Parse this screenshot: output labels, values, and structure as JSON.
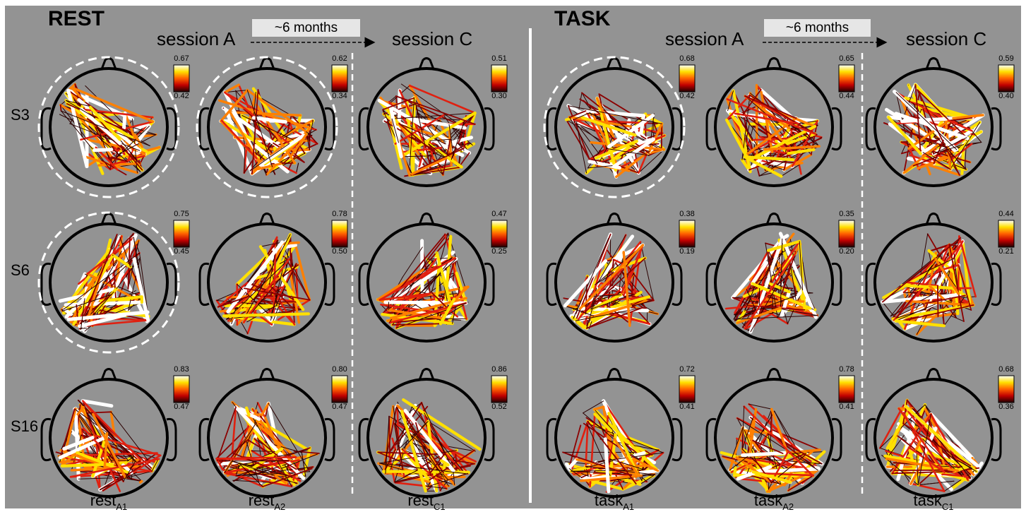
{
  "sections": {
    "rest": {
      "title": "REST",
      "session_a": "session A",
      "session_c": "session C",
      "interval": "~6 months"
    },
    "task": {
      "title": "TASK",
      "session_a": "session A",
      "session_c": "session C",
      "interval": "~6 months"
    }
  },
  "subjects": [
    "S3",
    "S6",
    "S16"
  ],
  "columns": [
    {
      "base": "rest",
      "sub": "A1"
    },
    {
      "base": "rest",
      "sub": "A2"
    },
    {
      "base": "rest",
      "sub": "C1"
    },
    {
      "base": "task",
      "sub": "A1"
    },
    {
      "base": "task",
      "sub": "A2"
    },
    {
      "base": "task",
      "sub": "C1"
    }
  ],
  "colorbars": [
    [
      {
        "max": "0.67",
        "min": "0.42"
      },
      {
        "max": "0.62",
        "min": "0.34"
      },
      {
        "max": "0.51",
        "min": "0.30"
      },
      {
        "max": "0.68",
        "min": "0.42"
      },
      {
        "max": "0.65",
        "min": "0.44"
      },
      {
        "max": "0.59",
        "min": "0.40"
      }
    ],
    [
      {
        "max": "0.75",
        "min": "0.45"
      },
      {
        "max": "0.78",
        "min": "0.50"
      },
      {
        "max": "0.47",
        "min": "0.25"
      },
      {
        "max": "0.38",
        "min": "0.19"
      },
      {
        "max": "0.35",
        "min": "0.20"
      },
      {
        "max": "0.44",
        "min": "0.21"
      }
    ],
    [
      {
        "max": "0.83",
        "min": "0.47"
      },
      {
        "max": "0.80",
        "min": "0.47"
      },
      {
        "max": "0.86",
        "min": "0.52"
      },
      {
        "max": "0.72",
        "min": "0.41"
      },
      {
        "max": "0.78",
        "min": "0.41"
      },
      {
        "max": "0.68",
        "min": "0.36"
      }
    ]
  ],
  "highlighted_panels": [
    [
      0,
      0
    ],
    [
      0,
      1
    ],
    [
      0,
      3
    ],
    [
      1,
      0
    ]
  ],
  "colors": {
    "background": "#939393",
    "line_low": "#2a0000",
    "line_mid1": "#8b0000",
    "line_mid2": "#e02010",
    "line_mid3": "#ff8000",
    "line_high": "#ffe000",
    "line_top": "#ffffff"
  }
}
